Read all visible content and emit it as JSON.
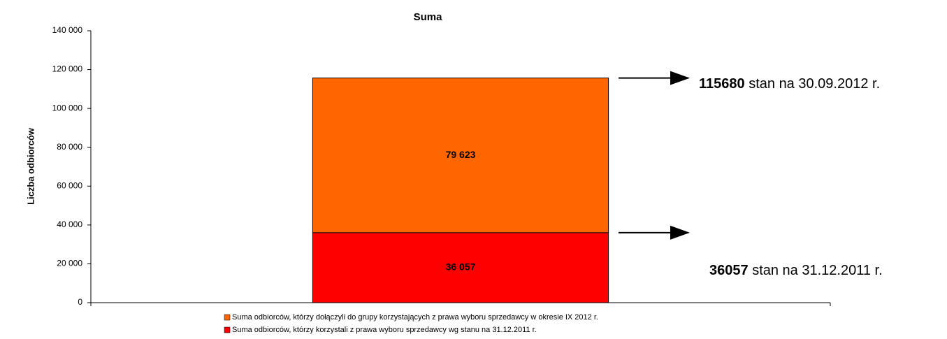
{
  "chart_data": {
    "type": "stacked_bar",
    "title": "Suma",
    "y_label": "Liczba odbiorców",
    "categories": [
      null
    ],
    "series": [
      {
        "name": "Suma odbiorców, którzy korzystali z prawa wyboru sprzedawcy wg stanu na 31.12.2011 r.",
        "color": "#ff0000",
        "values": [
          36057
        ],
        "value_labels": [
          "36 057"
        ]
      },
      {
        "name": "Suma odbiorców, którzy dołączyli do grupy korzystających z  prawa wyboru sprzedawcy w okresie IX 2012 r.",
        "color": "#ff6600",
        "values": [
          79623
        ],
        "value_labels": [
          "79 623"
        ]
      }
    ],
    "ylim": [
      0,
      140000
    ],
    "yticks": [
      0,
      {
        "value": 20000,
        "label": "20 000"
      },
      {
        "value": 40000,
        "label": "40 000"
      },
      {
        "value": 60000,
        "label": "60 000"
      },
      {
        "value": 80000,
        "label": "80 000"
      },
      {
        "value": 100000,
        "label": "100 000"
      },
      {
        "value": 120000,
        "label": "120 000"
      },
      {
        "value": 140000,
        "label": "140 000"
      }
    ],
    "grid": false,
    "legend": "bottom",
    "annotations": [
      {
        "bold": "115680",
        "text": "stan na 30.09.2012 r."
      },
      {
        "bold": "36057",
        "text": "stan na 31.12.2011 r."
      }
    ]
  }
}
